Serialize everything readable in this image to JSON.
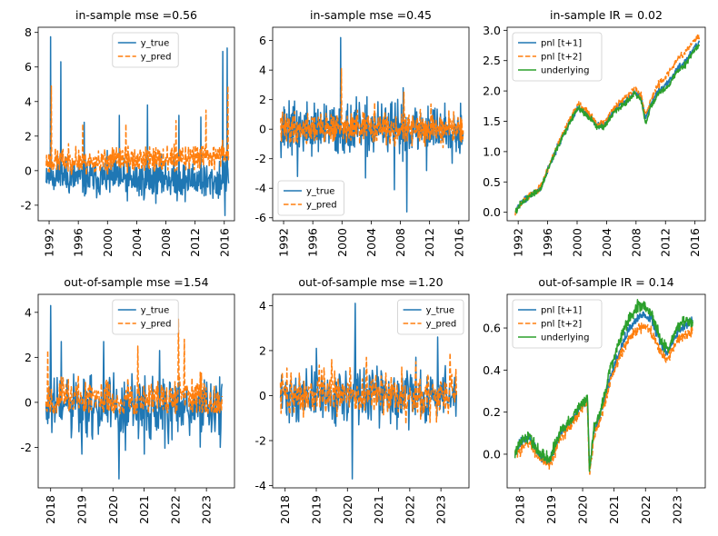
{
  "chart_data": [
    {
      "type": "line",
      "title": "in-sample mse =0.56",
      "xlim": [
        1990.5,
        2017.4
      ],
      "ylim": [
        -2.9,
        8.3
      ],
      "yticks": [
        -2,
        0,
        2,
        4,
        6,
        8
      ],
      "xticks": [
        "1992",
        "1996",
        "2000",
        "2004",
        "2008",
        "2012",
        "2016"
      ],
      "legend_position": "top-center",
      "series": [
        {
          "name": "y_true",
          "color": "#1f77b4",
          "style": "solid",
          "seed": 11,
          "sigma": 0.55,
          "base": -0.1,
          "x": [
            1991.6,
            1992.0,
            1994.0,
            1996.0,
            1998.0,
            2000.0,
            2002.0,
            2004.0,
            2006.0,
            2008.0,
            2010.0,
            2012.0,
            2014.0,
            2016.0,
            2016.6
          ],
          "y": [
            0.0,
            -0.2,
            -0.3,
            -0.4,
            -0.5,
            -0.4,
            -0.5,
            -0.6,
            -0.5,
            -0.4,
            -0.6,
            -0.5,
            -0.7,
            -0.4,
            -0.3
          ],
          "spikes": [
            [
              1992.2,
              7.75
            ],
            [
              1993.6,
              6.3
            ],
            [
              1996.8,
              2.8
            ],
            [
              2001.6,
              3.2
            ],
            [
              2005.5,
              3.8
            ],
            [
              2009.8,
              3.2
            ],
            [
              2012.8,
              3.1
            ],
            [
              2015.8,
              6.9
            ],
            [
              2016.4,
              7.1
            ],
            [
              2016.1,
              -2.6
            ]
          ]
        },
        {
          "name": "y_pred",
          "color": "#ff7f0e",
          "style": "dashed",
          "seed": 23,
          "sigma": 0.35,
          "base": 0.3,
          "x": [
            1991.6,
            1994.0,
            1998.0,
            2002.0,
            2006.0,
            2010.0,
            2014.0,
            2016.6
          ],
          "y": [
            0.5,
            0.6,
            0.5,
            0.7,
            0.6,
            0.7,
            0.9,
            1.0
          ],
          "spikes": [
            [
              1992.3,
              4.9
            ],
            [
              1996.6,
              2.7
            ],
            [
              2002.5,
              2.7
            ],
            [
              2009.4,
              2.9
            ],
            [
              2013.5,
              3.5
            ],
            [
              2016.5,
              4.9
            ]
          ],
          "floor": -0.3
        }
      ]
    },
    {
      "type": "line",
      "title": "in-sample mse =0.45",
      "xlim": [
        1990.5,
        2017.4
      ],
      "ylim": [
        -6.2,
        6.9
      ],
      "yticks": [
        -6,
        -4,
        -2,
        0,
        2,
        4,
        6
      ],
      "xticks": [
        "1992",
        "1996",
        "2000",
        "2004",
        "2008",
        "2012",
        "2016"
      ],
      "legend_position": "bottom-left",
      "series": [
        {
          "name": "y_true",
          "color": "#1f77b4",
          "style": "solid",
          "seed": 37,
          "sigma": 0.85,
          "base": 0.0,
          "x": [
            1991.6,
            2016.6
          ],
          "y": [
            0.0,
            0.0
          ],
          "spikes": [
            [
              1999.8,
              6.2
            ],
            [
              2008.4,
              2.8
            ],
            [
              2008.9,
              -5.6
            ],
            [
              2007.2,
              -4.1
            ],
            [
              2003.2,
              -3.3
            ],
            [
              2011.6,
              -2.8
            ],
            [
              1993.9,
              -3.2
            ]
          ]
        },
        {
          "name": "y_pred",
          "color": "#ff7f0e",
          "style": "dashed",
          "seed": 41,
          "sigma": 0.5,
          "base": 0.1,
          "x": [
            1991.6,
            2016.6
          ],
          "y": [
            0.1,
            0.0
          ],
          "spikes": [
            [
              1999.9,
              4.1
            ],
            [
              2008.5,
              2.5
            ],
            [
              2004.5,
              1.8
            ],
            [
              2012.2,
              1.7
            ]
          ]
        }
      ]
    },
    {
      "type": "line",
      "title": "in-sample IR = 0.02",
      "xlim": [
        1990.5,
        2017.4
      ],
      "ylim": [
        -0.14,
        3.05
      ],
      "yticks": [
        "0.0",
        "0.5",
        "1.0",
        "1.5",
        "2.0",
        "2.5",
        "3.0"
      ],
      "xticks": [
        "1992",
        "1996",
        "2000",
        "2004",
        "2008",
        "2012",
        "2016"
      ],
      "legend_position": "top-left",
      "series": [
        {
          "name": "pnl [t+1]",
          "color": "#1f77b4",
          "style": "solid",
          "seed": 51,
          "sigma": 0.025,
          "x": [
            1991.6,
            1992.5,
            1994.0,
            1995.0,
            1996.5,
            1998.0,
            1999.3,
            2000.2,
            2001.5,
            2002.8,
            2003.8,
            2005.0,
            2006.5,
            2007.8,
            2008.7,
            2009.3,
            2010.0,
            2011.0,
            2012.5,
            2013.5,
            2014.8,
            2015.8,
            2016.6
          ],
          "y": [
            0.0,
            0.18,
            0.3,
            0.38,
            0.85,
            1.25,
            1.55,
            1.72,
            1.6,
            1.42,
            1.45,
            1.68,
            1.82,
            1.98,
            1.9,
            1.55,
            1.78,
            2.0,
            2.15,
            2.35,
            2.5,
            2.7,
            2.8
          ]
        },
        {
          "name": "pnl [t+2]",
          "color": "#ff7f0e",
          "style": "dashed",
          "seed": 53,
          "sigma": 0.025,
          "x": [
            1991.6,
            1992.5,
            1994.0,
            1995.0,
            1996.5,
            1998.0,
            1999.3,
            2000.2,
            2001.5,
            2002.8,
            2003.8,
            2005.0,
            2006.5,
            2007.8,
            2008.7,
            2009.3,
            2010.0,
            2011.0,
            2012.5,
            2013.5,
            2014.8,
            2015.8,
            2016.6
          ],
          "y": [
            0.0,
            0.17,
            0.31,
            0.4,
            0.86,
            1.28,
            1.6,
            1.8,
            1.65,
            1.45,
            1.5,
            1.72,
            1.88,
            2.05,
            1.95,
            1.6,
            1.85,
            2.1,
            2.3,
            2.5,
            2.65,
            2.82,
            2.9
          ]
        },
        {
          "name": "underlying",
          "color": "#2ca02c",
          "style": "solid",
          "seed": 57,
          "sigma": 0.025,
          "x": [
            1991.6,
            1992.5,
            1994.0,
            1995.0,
            1996.5,
            1998.0,
            1999.3,
            2000.2,
            2001.5,
            2002.8,
            2003.8,
            2005.0,
            2006.5,
            2007.8,
            2008.7,
            2009.3,
            2010.0,
            2011.0,
            2012.5,
            2013.5,
            2014.8,
            2015.8,
            2016.6
          ],
          "y": [
            0.0,
            0.17,
            0.3,
            0.37,
            0.84,
            1.24,
            1.55,
            1.73,
            1.58,
            1.4,
            1.43,
            1.65,
            1.8,
            1.96,
            1.85,
            1.45,
            1.75,
            1.95,
            2.1,
            2.3,
            2.45,
            2.65,
            2.75
          ]
        }
      ]
    },
    {
      "type": "line",
      "title": "out-of-sample mse =1.54",
      "xlim": [
        2017.6,
        2023.9
      ],
      "ylim": [
        -3.8,
        4.8
      ],
      "yticks": [
        -2,
        0,
        2,
        4
      ],
      "xticks": [
        "2018",
        "2019",
        "2020",
        "2021",
        "2022",
        "2023"
      ],
      "legend_position": "top-center",
      "series": [
        {
          "name": "y_true",
          "color": "#1f77b4",
          "style": "solid",
          "seed": 61,
          "sigma": 0.75,
          "base": -0.3,
          "n": 300,
          "x": [
            2017.85,
            2023.5
          ],
          "y": [
            -0.3,
            -0.3
          ],
          "spikes": [
            [
              2018.0,
              4.3
            ],
            [
              2018.35,
              2.7
            ],
            [
              2019.7,
              2.7
            ],
            [
              2020.2,
              -3.4
            ],
            [
              2021.5,
              2.3
            ],
            [
              2023.0,
              0.9
            ],
            [
              2023.45,
              -2.0
            ],
            [
              2019.0,
              -2.3
            ],
            [
              2021.0,
              -2.3
            ]
          ]
        },
        {
          "name": "y_pred",
          "color": "#ff7f0e",
          "style": "dashed",
          "seed": 67,
          "sigma": 0.45,
          "base": 0.15,
          "n": 300,
          "x": [
            2017.85,
            2023.5
          ],
          "y": [
            0.2,
            0.1
          ],
          "spikes": [
            [
              2017.9,
              2.3
            ],
            [
              2020.8,
              2.5
            ],
            [
              2022.1,
              3.7
            ],
            [
              2022.3,
              2.8
            ],
            [
              2023.4,
              0.3
            ]
          ],
          "floor": -0.5
        }
      ]
    },
    {
      "type": "line",
      "title": "out-of-sample mse =1.20",
      "xlim": [
        2017.6,
        2023.9
      ],
      "ylim": [
        -4.1,
        4.5
      ],
      "yticks": [
        -4,
        -2,
        0,
        2,
        4
      ],
      "xticks": [
        "2018",
        "2019",
        "2020",
        "2021",
        "2022",
        "2023"
      ],
      "legend_position": "top-right",
      "series": [
        {
          "name": "y_true",
          "color": "#1f77b4",
          "style": "solid",
          "seed": 71,
          "sigma": 0.6,
          "base": 0.0,
          "n": 300,
          "x": [
            2017.85,
            2023.5
          ],
          "y": [
            0.0,
            0.0
          ],
          "spikes": [
            [
              2020.25,
              4.1
            ],
            [
              2020.15,
              -3.7
            ],
            [
              2022.9,
              2.6
            ],
            [
              2019.0,
              2.1
            ],
            [
              2021.6,
              -1.5
            ]
          ]
        },
        {
          "name": "y_pred",
          "color": "#ff7f0e",
          "style": "dashed",
          "seed": 73,
          "sigma": 0.5,
          "base": 0.1,
          "n": 300,
          "x": [
            2017.85,
            2023.5
          ],
          "y": [
            0.1,
            0.0
          ],
          "spikes": [
            [
              2019.5,
              1.6
            ],
            [
              2020.6,
              1.7
            ],
            [
              2022.2,
              1.5
            ],
            [
              2023.3,
              1.9
            ]
          ]
        }
      ]
    },
    {
      "type": "line",
      "title": "out-of-sample IR = 0.14",
      "xlim": [
        2017.6,
        2023.9
      ],
      "ylim": [
        -0.16,
        0.76
      ],
      "yticks": [
        "0.0",
        "0.2",
        "0.4",
        "0.6"
      ],
      "xticks": [
        "2018",
        "2019",
        "2020",
        "2021",
        "2022",
        "2023"
      ],
      "legend_position": "top-left",
      "series": [
        {
          "name": "pnl [t+1]",
          "color": "#1f77b4",
          "style": "solid",
          "seed": 81,
          "sigma": 0.012,
          "x": [
            2017.85,
            2018.0,
            2018.3,
            2018.6,
            2018.95,
            2019.3,
            2019.6,
            2019.9,
            2020.15,
            2020.22,
            2020.35,
            2020.6,
            2020.9,
            2021.2,
            2021.5,
            2021.8,
            2022.0,
            2022.2,
            2022.5,
            2022.7,
            2023.0,
            2023.3,
            2023.5
          ],
          "y": [
            0.0,
            0.05,
            0.08,
            0.0,
            -0.04,
            0.1,
            0.15,
            0.22,
            0.27,
            -0.09,
            0.1,
            0.2,
            0.38,
            0.5,
            0.6,
            0.66,
            0.66,
            0.64,
            0.52,
            0.48,
            0.58,
            0.62,
            0.63
          ]
        },
        {
          "name": "pnl [t+2]",
          "color": "#ff7f0e",
          "style": "dashed",
          "seed": 83,
          "sigma": 0.012,
          "x": [
            2017.85,
            2018.0,
            2018.3,
            2018.6,
            2018.95,
            2019.3,
            2019.6,
            2019.9,
            2020.15,
            2020.22,
            2020.35,
            2020.6,
            2020.9,
            2021.2,
            2021.5,
            2021.8,
            2022.0,
            2022.2,
            2022.5,
            2022.7,
            2023.0,
            2023.3,
            2023.5
          ],
          "y": [
            0.0,
            0.02,
            0.05,
            -0.01,
            -0.05,
            0.08,
            0.13,
            0.2,
            0.25,
            -0.11,
            0.08,
            0.18,
            0.35,
            0.47,
            0.56,
            0.6,
            0.6,
            0.58,
            0.48,
            0.45,
            0.54,
            0.57,
            0.59
          ]
        },
        {
          "name": "underlying",
          "color": "#2ca02c",
          "style": "solid",
          "seed": 87,
          "sigma": 0.014,
          "x": [
            2017.85,
            2018.0,
            2018.3,
            2018.6,
            2018.95,
            2019.3,
            2019.6,
            2019.9,
            2020.15,
            2020.22,
            2020.35,
            2020.6,
            2020.9,
            2021.2,
            2021.5,
            2021.8,
            2022.0,
            2022.2,
            2022.5,
            2022.7,
            2023.0,
            2023.3,
            2023.5
          ],
          "y": [
            0.0,
            0.06,
            0.09,
            0.01,
            -0.03,
            0.11,
            0.16,
            0.23,
            0.28,
            -0.08,
            0.12,
            0.22,
            0.42,
            0.55,
            0.65,
            0.71,
            0.7,
            0.66,
            0.54,
            0.5,
            0.6,
            0.64,
            0.62
          ]
        }
      ]
    }
  ]
}
